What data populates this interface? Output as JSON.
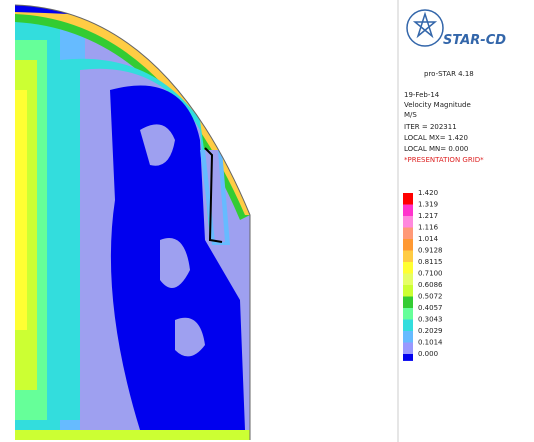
{
  "logo": "STAR-CD",
  "info": {
    "version": "pro-STAR 4.18",
    "date": "19-Feb-14",
    "quantity": "Velocity Magnitude",
    "units": "M/S",
    "iter": "ITER =  202311",
    "max": "LOCAL MX=  1.420",
    "min": "LOCAL MN=  0.000",
    "grid": "*PRESENTATION GRID*"
  },
  "legend": {
    "levels": [
      "1.420",
      "1.319",
      "1.217",
      "1.116",
      "1.014",
      "0.9128",
      "0.8115",
      "0.7100",
      "0.6086",
      "0.5072",
      "0.4057",
      "0.3043",
      "0.2029",
      "0.1014",
      "0.000"
    ],
    "colors": [
      "#ff0000",
      "#ff33cc",
      "#ff88dd",
      "#ff9977",
      "#ff9933",
      "#ffcc44",
      "#ffff33",
      "#e6ff66",
      "#ccff33",
      "#33cc33",
      "#66ff99",
      "#33dddd",
      "#66bbff",
      "#9999ff"
    ],
    "last_color": "#0000ee"
  }
}
